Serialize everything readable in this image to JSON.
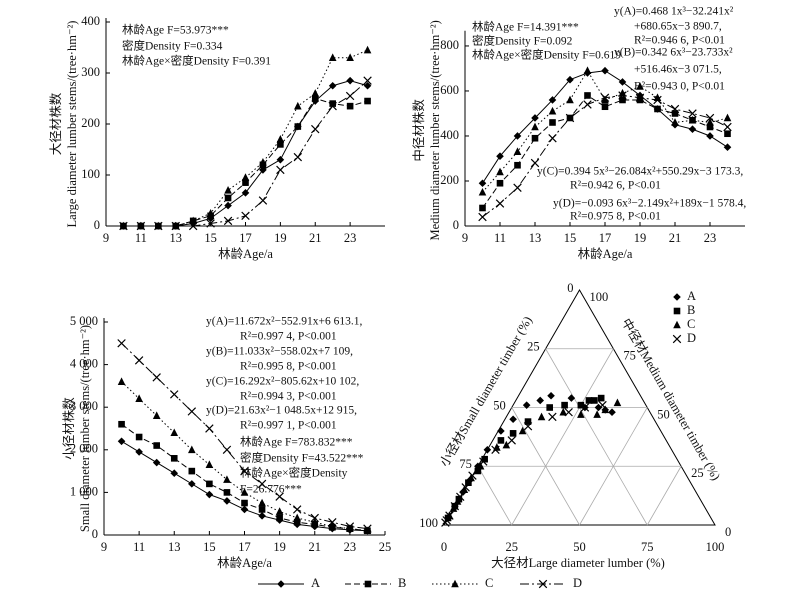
{
  "chart_data": [
    {
      "type": "line",
      "ylabel": "大径材株数",
      "ylabel_en": "Large diameter lumber stems/(tree·hm⁻²)",
      "xlabel": "林龄Age/a",
      "x": [
        10,
        11,
        12,
        13,
        14,
        15,
        16,
        17,
        18,
        19,
        20,
        21,
        22,
        23,
        24
      ],
      "xlim": [
        9,
        25
      ],
      "xticks": [
        9,
        11,
        13,
        15,
        17,
        19,
        21,
        23
      ],
      "ylim": [
        0,
        400
      ],
      "yticks": [
        0,
        100,
        200,
        300,
        400
      ],
      "annotations": [
        "林龄Age F=53.973***",
        "密度Density F=0.334",
        "林龄Age×密度Density  F=0.391"
      ],
      "series": [
        {
          "name": "A",
          "marker": "diamond",
          "dash": "solid",
          "color": "#000",
          "values": [
            0,
            0,
            0,
            0,
            5,
            15,
            40,
            65,
            110,
            130,
            195,
            245,
            275,
            285,
            275
          ]
        },
        {
          "name": "B",
          "marker": "square",
          "dash": "dashed",
          "color": "#000",
          "values": [
            0,
            0,
            0,
            0,
            10,
            20,
            55,
            85,
            120,
            160,
            195,
            250,
            240,
            235,
            245
          ]
        },
        {
          "name": "C",
          "marker": "triangle",
          "dash": "dotted",
          "color": "#000",
          "values": [
            0,
            0,
            0,
            0,
            10,
            25,
            70,
            95,
            125,
            170,
            235,
            260,
            330,
            330,
            345
          ]
        },
        {
          "name": "D",
          "marker": "cross",
          "dash": "dashdot",
          "color": "#000",
          "values": [
            0,
            0,
            0,
            0,
            0,
            5,
            10,
            20,
            50,
            110,
            135,
            190,
            235,
            255,
            285
          ]
        }
      ]
    },
    {
      "type": "line",
      "ylabel": "中径材株数",
      "ylabel_en": "Medium diameter lumber stems/(tree·hm⁻²)",
      "xlabel": "林龄Age/a",
      "x": [
        10,
        11,
        12,
        13,
        14,
        15,
        16,
        17,
        18,
        19,
        20,
        21,
        22,
        23,
        24
      ],
      "xlim": [
        9,
        25
      ],
      "xticks": [
        9,
        11,
        13,
        15,
        17,
        19,
        21,
        23
      ],
      "ylim": [
        0,
        850
      ],
      "yticks": [
        0,
        200,
        400,
        600,
        800
      ],
      "annotations": [
        "林龄Age F=14.391***",
        "密度Density F=0.092",
        "林龄Age×密度Density  F=0.619",
        "y(A)=0.468 1x³−32.241x²",
        "+680.65x−3 890.7,",
        "R²=0.946 6, P<0.01",
        "y(B)=0.342 6x³−23.733x²",
        "+516.46x−3 071.5,",
        "R²=0.943 0, P<0.01",
        "y(C)=0.394 5x³−26.084x²+550.29x−3 173.3,",
        "R²=0.942 6, P<0.01",
        "y(D)=−0.093 6x³−2.149x²+189x−1 578.4,",
        "R²=0.975 8, P<0.01"
      ],
      "series": [
        {
          "name": "A",
          "marker": "diamond",
          "dash": "solid",
          "color": "#000",
          "values": [
            190,
            310,
            400,
            480,
            560,
            650,
            680,
            690,
            640,
            580,
            520,
            450,
            430,
            400,
            350
          ]
        },
        {
          "name": "B",
          "marker": "square",
          "dash": "dashed",
          "color": "#000",
          "values": [
            80,
            190,
            270,
            390,
            460,
            480,
            580,
            530,
            560,
            560,
            520,
            500,
            470,
            440,
            410
          ]
        },
        {
          "name": "C",
          "marker": "triangle",
          "dash": "dotted",
          "color": "#000",
          "values": [
            150,
            240,
            330,
            440,
            510,
            560,
            690,
            560,
            590,
            620,
            570,
            460,
            470,
            460,
            480
          ]
        },
        {
          "name": "D",
          "marker": "cross",
          "dash": "dashdot",
          "color": "#000",
          "values": [
            40,
            100,
            170,
            280,
            390,
            480,
            540,
            570,
            580,
            570,
            560,
            520,
            500,
            480,
            440
          ]
        }
      ]
    },
    {
      "type": "line",
      "ylabel": "小径材株数",
      "ylabel_en": "Small diameter lumber stems/(tree·hm⁻²)",
      "xlabel": "林龄Age/a",
      "x": [
        10,
        11,
        12,
        13,
        14,
        15,
        16,
        17,
        18,
        19,
        20,
        21,
        22,
        23,
        24
      ],
      "xlim": [
        9,
        25
      ],
      "xticks": [
        9,
        11,
        13,
        15,
        17,
        19,
        21,
        23,
        25
      ],
      "ylim": [
        0,
        5000
      ],
      "yticks": [
        0,
        {
          "value": 1000,
          "label": "1 000"
        },
        {
          "value": 2000,
          "label": "2 000"
        },
        {
          "value": 3000,
          "label": "3 000"
        },
        {
          "value": 4000,
          "label": "4 000"
        },
        {
          "value": 5000,
          "label": "5 000"
        }
      ],
      "annotations": [
        "y(A)=11.672x²−552.91x+6 613.1,",
        "R²=0.997 4, P<0.001",
        "y(B)=11.033x²−558.02x+7 109,",
        "R²=0.995 8, P<0.001",
        "y(C)=16.292x²−805.62x+10 102,",
        "R²=0.994 3, P<0.001",
        "y(D)=21.63x²−1 048.5x+12 915,",
        "R²=0.997 1, P<0.001",
        "林龄Age F=783.832***",
        "密度Density F=43.522***",
        "林龄Age×密度Density",
        "F=26.776***"
      ],
      "series": [
        {
          "name": "A",
          "marker": "diamond",
          "dash": "solid",
          "color": "#000",
          "values": [
            2200,
            1950,
            1700,
            1450,
            1200,
            950,
            800,
            600,
            450,
            350,
            250,
            200,
            150,
            120,
            100
          ]
        },
        {
          "name": "B",
          "marker": "square",
          "dash": "dashed",
          "color": "#000",
          "values": [
            2600,
            2300,
            2100,
            1800,
            1500,
            1200,
            1000,
            750,
            600,
            400,
            300,
            250,
            180,
            150,
            100
          ]
        },
        {
          "name": "C",
          "marker": "triangle",
          "dash": "dotted",
          "color": "#000",
          "values": [
            3600,
            3200,
            2800,
            2400,
            2000,
            1650,
            1300,
            1000,
            750,
            550,
            400,
            300,
            200,
            150,
            100
          ]
        },
        {
          "name": "D",
          "marker": "cross",
          "dash": "dashdot",
          "color": "#000",
          "values": [
            4500,
            4100,
            3700,
            3300,
            2900,
            2500,
            2000,
            1500,
            1200,
            900,
            600,
            400,
            300,
            200,
            150
          ]
        }
      ]
    },
    {
      "type": "ternary",
      "ticks": [
        0,
        25,
        50,
        75,
        100
      ],
      "large_label": "大径材Large diameter lumber (%)",
      "medium_label": "中径材Medium diameter timber (%)",
      "small_label": "小径材Small diameter timber (%)",
      "series": [
        {
          "name": "A",
          "marker": "diamond",
          "color": "#000",
          "large": [
            0,
            0,
            0,
            0,
            0,
            1,
            3,
            5,
            9,
            12,
            20,
            27,
            32,
            35,
            38
          ],
          "medium": [
            8,
            14,
            19,
            25,
            32,
            40,
            45,
            51,
            53,
            55,
            54,
            50,
            50,
            49,
            48
          ]
        },
        {
          "name": "B",
          "marker": "square",
          "color": "#000",
          "large": [
            0,
            0,
            0,
            0,
            1,
            1,
            3,
            6,
            9,
            14,
            19,
            25,
            27,
            29,
            31
          ],
          "medium": [
            3,
            8,
            11,
            18,
            23,
            28,
            36,
            39,
            44,
            50,
            51,
            51,
            53,
            53,
            54
          ]
        },
        {
          "name": "C",
          "marker": "triangle",
          "color": "#000",
          "large": [
            0,
            0,
            0,
            0,
            0,
            1,
            3,
            6,
            9,
            13,
            20,
            27,
            33,
            35,
            38
          ],
          "medium": [
            4,
            7,
            10,
            15,
            20,
            25,
            33,
            34,
            40,
            46,
            48,
            47,
            47,
            49,
            52
          ]
        },
        {
          "name": "D",
          "marker": "cross",
          "color": "#000",
          "large": [
            0,
            0,
            0,
            0,
            0,
            0,
            0,
            1,
            3,
            7,
            10,
            17,
            22,
            27,
            33
          ],
          "medium": [
            1,
            2,
            4,
            8,
            12,
            16,
            21,
            27,
            32,
            36,
            42,
            46,
            48,
            50,
            51
          ]
        }
      ]
    }
  ]
}
